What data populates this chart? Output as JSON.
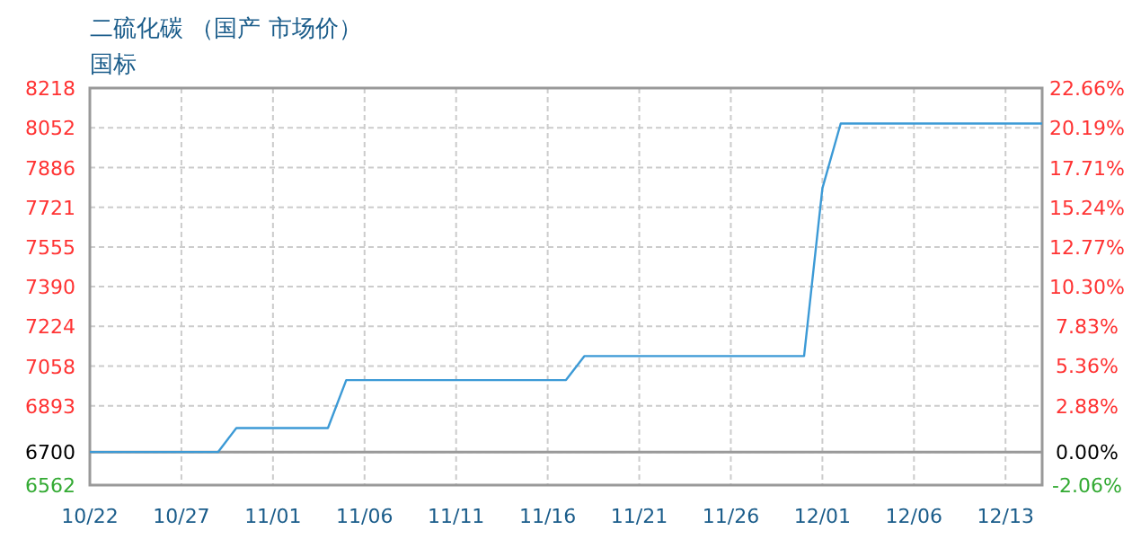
{
  "chart_data": {
    "type": "line",
    "title": "二硫化碳 （国产 市场价）",
    "subtitle": "国标",
    "categories": [
      "10/22",
      null,
      null,
      null,
      null,
      "10/27",
      null,
      null,
      null,
      null,
      "11/01",
      null,
      null,
      null,
      null,
      "11/06",
      null,
      null,
      null,
      null,
      "11/11",
      null,
      null,
      null,
      null,
      "11/16",
      null,
      null,
      null,
      null,
      "11/21",
      null,
      null,
      null,
      null,
      "11/26",
      null,
      null,
      null,
      null,
      "12/01",
      null,
      null,
      null,
      null,
      "12/06",
      null,
      null,
      null,
      null,
      "12/13",
      null,
      null
    ],
    "series": [
      {
        "color": "#3c9ad6",
        "values": [
          6700,
          6700,
          6700,
          6700,
          6700,
          6700,
          6700,
          6700,
          6800,
          6800,
          6800,
          6800,
          6800,
          6800,
          7000,
          7000,
          7000,
          7000,
          7000,
          7000,
          7000,
          7000,
          7000,
          7000,
          7000,
          7000,
          7000,
          7100,
          7100,
          7100,
          7100,
          7100,
          7100,
          7100,
          7100,
          7100,
          7100,
          7100,
          7100,
          7100,
          7800,
          8070,
          8070,
          8070,
          8070,
          8070,
          8070,
          8070,
          8070,
          8070,
          8070,
          8070,
          8070
        ]
      }
    ],
    "ylim": [
      6562,
      8218
    ],
    "yticks": [
      6562,
      6700,
      6893,
      7058,
      7224,
      7390,
      7555,
      7721,
      7886,
      8052,
      8218
    ],
    "y2lim": [
      -2.06,
      22.66
    ],
    "y2ticks": [
      {
        "value": -2.06,
        "label": "-2.06%"
      },
      {
        "value": 0,
        "label": "0.00%"
      },
      {
        "value": 2.88,
        "label": "2.88%"
      },
      {
        "value": 5.36,
        "label": "5.36%"
      },
      {
        "value": 7.83,
        "label": "7.83%"
      },
      {
        "value": 10.3,
        "label": "10.30%"
      },
      {
        "value": 12.77,
        "label": "12.77%"
      },
      {
        "value": 15.24,
        "label": "15.24%"
      },
      {
        "value": 17.71,
        "label": "17.71%"
      },
      {
        "value": 20.19,
        "label": "20.19%"
      },
      {
        "value": 22.66,
        "label": "22.66%"
      }
    ],
    "ref_lines": [
      {
        "axis": "y",
        "value": 6700,
        "color": "#999999"
      }
    ],
    "grid": true,
    "marker": "none",
    "line_style": "solid"
  }
}
